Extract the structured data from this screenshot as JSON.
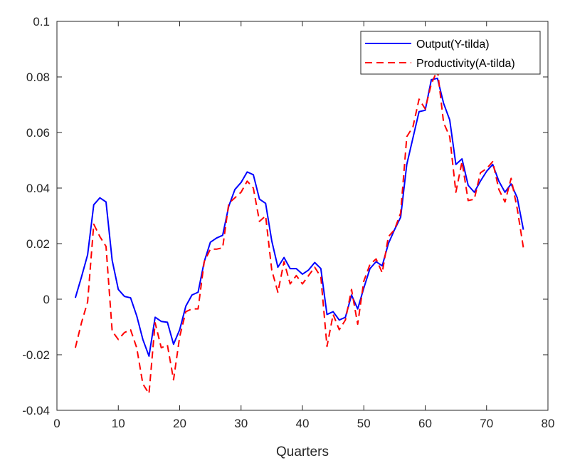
{
  "chart_data": {
    "type": "line",
    "title": "",
    "xlabel": "Quarters",
    "ylabel": "",
    "xlim": [
      0,
      80
    ],
    "ylim": [
      -0.04,
      0.1
    ],
    "xticks": [
      0,
      10,
      20,
      30,
      40,
      50,
      60,
      70,
      80
    ],
    "yticks": [
      -0.04,
      -0.02,
      0,
      0.02,
      0.04,
      0.06,
      0.08,
      0.1
    ],
    "xtick_labels": [
      "0",
      "10",
      "20",
      "30",
      "40",
      "50",
      "60",
      "70",
      "80"
    ],
    "ytick_labels": [
      "-0.04",
      "-0.02",
      "0",
      "0.02",
      "0.04",
      "0.06",
      "0.08",
      "0.1"
    ],
    "grid": false,
    "legend_position": "top-right",
    "x": [
      3,
      4,
      5,
      6,
      7,
      8,
      9,
      10,
      11,
      12,
      13,
      14,
      15,
      16,
      17,
      18,
      19,
      20,
      21,
      22,
      23,
      24,
      25,
      26,
      27,
      28,
      29,
      30,
      31,
      32,
      33,
      34,
      35,
      36,
      37,
      38,
      39,
      40,
      41,
      42,
      43,
      44,
      45,
      46,
      47,
      48,
      49,
      50,
      51,
      52,
      53,
      54,
      55,
      56,
      57,
      58,
      59,
      60,
      61,
      62,
      63,
      64,
      65,
      66,
      67,
      68,
      69,
      70,
      71,
      72,
      73,
      74,
      75,
      76
    ],
    "series": [
      {
        "name": "Output(Y-tilda)",
        "color": "#0000ff",
        "style": "solid",
        "values": [
          0.0005,
          0.008,
          0.016,
          0.034,
          0.0365,
          0.035,
          0.014,
          0.0035,
          0.001,
          0.0005,
          -0.006,
          -0.0145,
          -0.0205,
          -0.0065,
          -0.008,
          -0.0083,
          -0.0162,
          -0.011,
          -0.0025,
          0.0015,
          0.0025,
          0.0135,
          0.0205,
          0.022,
          0.023,
          0.0335,
          0.0395,
          0.042,
          0.0458,
          0.0448,
          0.036,
          0.0345,
          0.021,
          0.0115,
          0.015,
          0.011,
          0.011,
          0.009,
          0.0105,
          0.0132,
          0.011,
          -0.0055,
          -0.0045,
          -0.0075,
          -0.0065,
          0.0015,
          -0.0035,
          0.004,
          0.011,
          0.0135,
          0.012,
          0.02,
          0.025,
          0.0295,
          0.0485,
          0.058,
          0.0675,
          0.068,
          0.079,
          0.0795,
          0.0705,
          0.0645,
          0.0485,
          0.0505,
          0.041,
          0.0385,
          0.0425,
          0.046,
          0.0485,
          0.0425,
          0.0385,
          0.0415,
          0.0365,
          0.025
        ]
      },
      {
        "name": "Productivity(A-tilda)",
        "color": "#ff0000",
        "style": "dashed",
        "values": [
          -0.0175,
          -0.0085,
          -0.001,
          0.027,
          0.0225,
          0.019,
          -0.0115,
          -0.0145,
          -0.012,
          -0.011,
          -0.0175,
          -0.0305,
          -0.034,
          -0.0085,
          -0.0175,
          -0.0165,
          -0.029,
          -0.0135,
          -0.0045,
          -0.0035,
          -0.0035,
          0.0135,
          0.018,
          0.018,
          0.0185,
          0.0345,
          0.0365,
          0.0385,
          0.0425,
          0.04,
          0.028,
          0.03,
          0.0105,
          0.0025,
          0.0135,
          0.0055,
          0.0085,
          0.0055,
          0.0085,
          0.0115,
          0.008,
          -0.017,
          -0.0055,
          -0.011,
          -0.0075,
          0.0035,
          -0.009,
          0.0065,
          0.0125,
          0.0145,
          0.0095,
          0.0225,
          0.025,
          0.031,
          0.0585,
          0.062,
          0.072,
          0.0685,
          0.0775,
          0.0825,
          0.0635,
          0.0585,
          0.0385,
          0.0495,
          0.0355,
          0.036,
          0.0455,
          0.047,
          0.0495,
          0.0395,
          0.035,
          0.0435,
          0.0325,
          0.0185
        ]
      }
    ]
  }
}
